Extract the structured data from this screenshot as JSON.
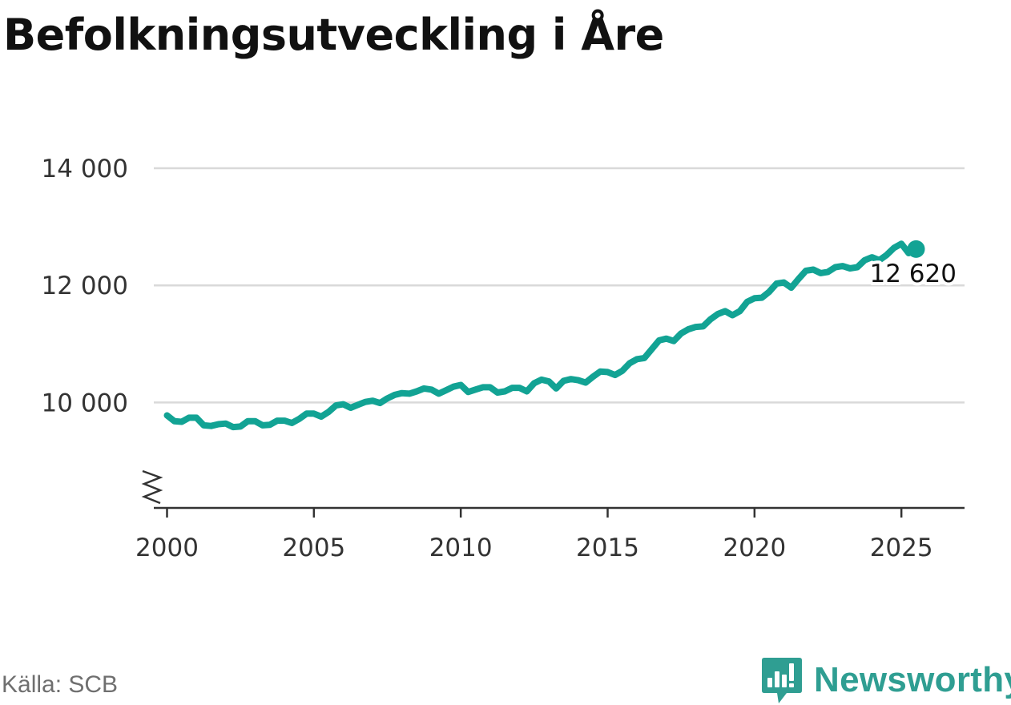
{
  "title": "Befolkningsutveckling i Åre",
  "source": "Källa: SCB",
  "brand": {
    "name": "Newsworthy",
    "icon": "chart-speech-bubble-icon",
    "color": "#2f9e92"
  },
  "chart_data": {
    "type": "line",
    "title": "Befolkningsutveckling i Åre",
    "xlabel": "",
    "ylabel": "",
    "xlim": [
      1999.55,
      2027.15
    ],
    "ylim": [
      8200,
      14000
    ],
    "x_ticks": [
      2000,
      2005,
      2010,
      2015,
      2020,
      2025
    ],
    "x_tick_labels": [
      "2000",
      "2005",
      "2010",
      "2015",
      "2020",
      "2025"
    ],
    "y_ticks": [
      10000,
      12000,
      14000
    ],
    "y_tick_labels": [
      "10 000",
      "12 000",
      "14 000"
    ],
    "axis_break": true,
    "grid": "horizontal",
    "legend": "none",
    "line_color": "#12a394",
    "last_label": "12 620",
    "series": [
      {
        "x": [
          2000.0,
          2000.25,
          2000.5,
          2000.75,
          2001.0,
          2001.25,
          2001.5,
          2001.75,
          2002.0,
          2002.25,
          2002.5,
          2002.75,
          2003.0,
          2003.25,
          2003.5,
          2003.75,
          2004.0,
          2004.25,
          2004.5,
          2004.75,
          2005.0,
          2005.25,
          2005.5,
          2005.75,
          2006.0,
          2006.25,
          2006.5,
          2006.75,
          2007.0,
          2007.25,
          2007.5,
          2007.75,
          2008.0,
          2008.25,
          2008.5,
          2008.75,
          2009.0,
          2009.25,
          2009.5,
          2009.75,
          2010.0,
          2010.25,
          2010.5,
          2010.75,
          2011.0,
          2011.25,
          2011.5,
          2011.75,
          2012.0,
          2012.25,
          2012.5,
          2012.75,
          2013.0,
          2013.25,
          2013.5,
          2013.75,
          2014.0,
          2014.25,
          2014.5,
          2014.75,
          2015.0,
          2015.25,
          2015.5,
          2015.75,
          2016.0,
          2016.25,
          2016.5,
          2016.75,
          2017.0,
          2017.25,
          2017.5,
          2017.75,
          2018.0,
          2018.25,
          2018.5,
          2018.75,
          2019.0,
          2019.25,
          2019.5,
          2019.75,
          2020.0,
          2020.25,
          2020.5,
          2020.75,
          2021.0,
          2021.25,
          2021.5,
          2021.75,
          2022.0,
          2022.25,
          2022.5,
          2022.75,
          2023.0,
          2023.25,
          2023.5,
          2023.75,
          2024.0,
          2024.25,
          2024.5,
          2024.75,
          2025.0,
          2025.25,
          2025.5
        ],
        "y": [
          9780,
          9680,
          9670,
          9740,
          9740,
          9610,
          9600,
          9630,
          9640,
          9580,
          9590,
          9680,
          9680,
          9610,
          9620,
          9690,
          9690,
          9650,
          9720,
          9810,
          9810,
          9760,
          9840,
          9950,
          9970,
          9910,
          9960,
          10010,
          10030,
          9990,
          10070,
          10130,
          10160,
          10150,
          10190,
          10240,
          10220,
          10150,
          10210,
          10270,
          10300,
          10180,
          10220,
          10260,
          10260,
          10170,
          10190,
          10250,
          10250,
          10190,
          10330,
          10390,
          10360,
          10240,
          10370,
          10400,
          10380,
          10340,
          10440,
          10530,
          10520,
          10470,
          10540,
          10670,
          10740,
          10760,
          10910,
          11060,
          11090,
          11050,
          11180,
          11250,
          11290,
          11300,
          11420,
          11510,
          11560,
          11490,
          11560,
          11720,
          11780,
          11790,
          11890,
          12030,
          12050,
          11960,
          12110,
          12250,
          12270,
          12210,
          12230,
          12310,
          12330,
          12290,
          12310,
          12430,
          12480,
          12430,
          12520,
          12640,
          12710,
          12550,
          12620
        ]
      }
    ]
  }
}
